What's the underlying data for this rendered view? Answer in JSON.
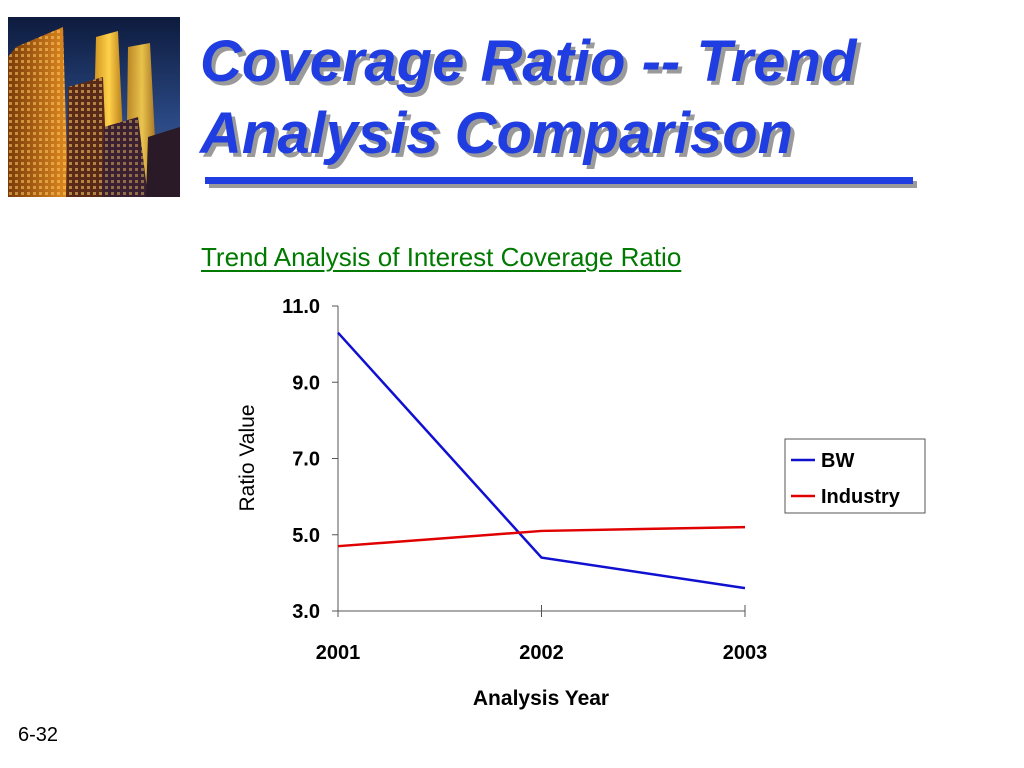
{
  "slide": {
    "title_line1": "Coverage Ratio -- Trend",
    "title_line2": "Analysis Comparison",
    "number": "6-32",
    "photo_icon": "city-skyscrapers-photo"
  },
  "colors": {
    "title": "#1f3de0",
    "chart_title": "#007a00",
    "bw": "#1010d0",
    "industry": "#e00000"
  },
  "chart_data": {
    "type": "line",
    "title": "Trend Analysis of Interest Coverage Ratio",
    "xlabel": "Analysis Year",
    "ylabel": "Ratio Value",
    "categories": [
      "2001",
      "2002",
      "2003"
    ],
    "ylim": [
      3.0,
      11.0
    ],
    "yticks": [
      "3.0",
      "5.0",
      "7.0",
      "9.0",
      "11.0"
    ],
    "series": [
      {
        "name": "BW",
        "values": [
          10.3,
          4.4,
          3.6
        ],
        "color": "#1010d0"
      },
      {
        "name": "Industry",
        "values": [
          4.7,
          5.1,
          5.2
        ],
        "color": "#e00000"
      }
    ],
    "legend": "right",
    "grid": false
  }
}
